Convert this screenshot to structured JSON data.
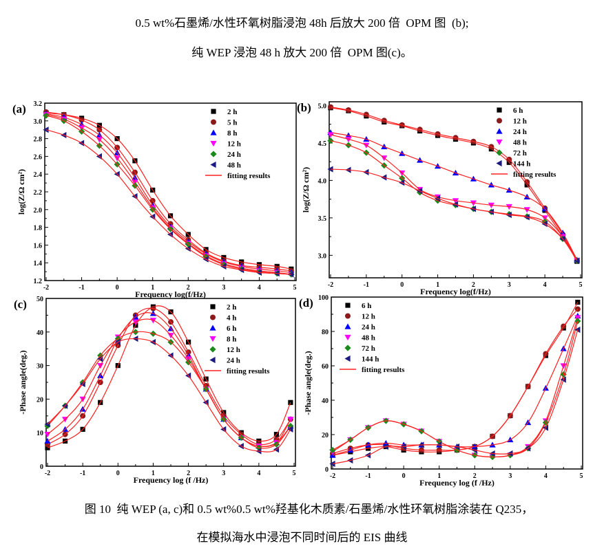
{
  "text": {
    "line1": "0.5 wt%石墨烯/水性环氧树脂浸泡 48h 后放大 200 倍  OPM 图  (b);",
    "line2": "纯 WEP 浸泡 48 h 放大 200 倍  OPM 图(c)。",
    "caption1": "图 10  纯 WEP (a, c)和 0.5 wt%0.5 wt%羟基化木质素/石墨烯/水性环氧树脂涂装在 Q235，",
    "caption2": "在模拟海水中浸泡不同时间后的 EIS 曲线"
  },
  "colors": {
    "s1": "#000000",
    "s2": "#8b1a1a",
    "s3": "#0000ff",
    "s4": "#ff00ff",
    "s5": "#1a8a1a",
    "s6": "#1a1a80",
    "fit": "#ff2020"
  },
  "chart_data": [
    {
      "panel_label": "(a)",
      "type": "scatter+line",
      "xlabel": "Frequency log(f/Hz)",
      "ylabel": "log(Z/Ω cm²)",
      "xlim": [
        -2,
        5
      ],
      "ylim": [
        1.2,
        3.2
      ],
      "xticks": [
        "-2",
        "-1",
        "0",
        "1",
        "2",
        "3",
        "4",
        "5"
      ],
      "yticks": [
        "1.2",
        "1.4",
        "1.6",
        "1.8",
        "2.0",
        "2.2",
        "2.4",
        "2.6",
        "2.8",
        "3.0",
        "3.2"
      ],
      "legend_position": "top-right",
      "fit_label": "fitting results",
      "x": [
        -2,
        -1.5,
        -1,
        -0.5,
        0,
        0.5,
        1,
        1.5,
        2,
        2.5,
        3,
        3.5,
        4,
        4.5,
        4.9
      ],
      "series": [
        {
          "name": "2 h",
          "marker": "square",
          "values": [
            3.09,
            3.07,
            3.03,
            2.95,
            2.8,
            2.55,
            2.22,
            1.93,
            1.72,
            1.55,
            1.46,
            1.41,
            1.38,
            1.36,
            1.33
          ]
        },
        {
          "name": "5 h",
          "marker": "circle",
          "values": [
            3.1,
            3.07,
            3.01,
            2.9,
            2.7,
            2.42,
            2.1,
            1.84,
            1.66,
            1.51,
            1.42,
            1.37,
            1.35,
            1.33,
            1.31
          ]
        },
        {
          "name": "8 h",
          "marker": "triangle-up",
          "values": [
            3.08,
            3.04,
            2.96,
            2.84,
            2.64,
            2.36,
            2.05,
            1.81,
            1.64,
            1.5,
            1.41,
            1.36,
            1.33,
            1.31,
            1.29
          ]
        },
        {
          "name": "12 h",
          "marker": "triangle-down",
          "values": [
            3.07,
            3.02,
            2.92,
            2.79,
            2.58,
            2.31,
            2.02,
            1.79,
            1.62,
            1.48,
            1.39,
            1.34,
            1.31,
            1.29,
            1.27
          ]
        },
        {
          "name": "24 h",
          "marker": "diamond",
          "values": [
            3.06,
            3.0,
            2.88,
            2.72,
            2.51,
            2.27,
            2.0,
            1.78,
            1.61,
            1.47,
            1.38,
            1.33,
            1.3,
            1.28,
            1.27
          ]
        },
        {
          "name": "48 h",
          "marker": "triangle-left",
          "values": [
            2.9,
            2.84,
            2.75,
            2.6,
            2.4,
            2.15,
            1.92,
            1.72,
            1.56,
            1.44,
            1.36,
            1.32,
            1.29,
            1.28,
            1.27
          ]
        }
      ]
    },
    {
      "panel_label": "(b)",
      "type": "scatter+line",
      "xlabel": "Frequency log(f/Hz)",
      "ylabel": "log(Z/Ω cm²)",
      "xlim": [
        -2,
        5
      ],
      "ylim": [
        2.7,
        5.05
      ],
      "xticks": [
        "-2",
        "-1",
        "0",
        "1",
        "2",
        "3",
        "4",
        "5"
      ],
      "yticks": [
        "3.0",
        "3.5",
        "4.0",
        "4.5",
        "5.0"
      ],
      "legend_position": "top-right",
      "fit_label": "fitting results",
      "x": [
        -2,
        -1.5,
        -1,
        -0.5,
        0,
        0.5,
        1,
        1.5,
        2,
        2.5,
        3,
        3.5,
        4,
        4.5,
        4.9
      ],
      "series": [
        {
          "name": "6 h",
          "marker": "square",
          "values": [
            4.97,
            4.93,
            4.86,
            4.78,
            4.73,
            4.66,
            4.6,
            4.55,
            4.5,
            4.42,
            4.24,
            3.94,
            3.6,
            3.25,
            2.92
          ]
        },
        {
          "name": "12 h",
          "marker": "circle",
          "values": [
            4.98,
            4.94,
            4.88,
            4.8,
            4.74,
            4.68,
            4.62,
            4.57,
            4.52,
            4.45,
            4.28,
            3.98,
            3.63,
            3.28,
            2.93
          ]
        },
        {
          "name": "24 h",
          "marker": "triangle-up",
          "values": [
            4.64,
            4.6,
            4.55,
            4.45,
            4.36,
            4.27,
            4.19,
            4.1,
            4.02,
            3.94,
            3.87,
            3.78,
            3.62,
            3.3,
            2.94
          ]
        },
        {
          "name": "48 h",
          "marker": "triangle-down",
          "values": [
            4.61,
            4.55,
            4.47,
            4.3,
            4.1,
            3.88,
            3.78,
            3.73,
            3.7,
            3.67,
            3.65,
            3.61,
            3.5,
            3.25,
            2.93
          ]
        },
        {
          "name": "72 h",
          "marker": "diamond",
          "values": [
            4.53,
            4.47,
            4.37,
            4.2,
            4.03,
            3.84,
            3.73,
            3.67,
            3.62,
            3.58,
            3.55,
            3.52,
            3.45,
            3.22,
            2.93
          ]
        },
        {
          "name": "144 h",
          "marker": "triangle-left",
          "values": [
            4.15,
            4.14,
            4.11,
            4.04,
            3.97,
            3.86,
            3.76,
            3.68,
            3.62,
            3.58,
            3.54,
            3.51,
            3.42,
            3.22,
            2.93
          ]
        }
      ]
    },
    {
      "panel_label": "(c)",
      "type": "scatter+line",
      "xlabel": "Frequency log (f /Hz)",
      "ylabel": "-Phase angle(deg.)",
      "xlim": [
        -2,
        5
      ],
      "ylim": [
        0,
        50
      ],
      "xticks": [
        "-2",
        "-1",
        "0",
        "1",
        "2",
        "3",
        "4",
        "5"
      ],
      "yticks": [
        "0",
        "10",
        "20",
        "30",
        "40",
        "50"
      ],
      "legend_position": "top-right",
      "fit_label": "fitting results",
      "x": [
        -2,
        -1.5,
        -1,
        -0.5,
        0,
        0.5,
        1,
        1.5,
        2,
        2.5,
        3,
        3.5,
        4,
        4.5,
        4.9
      ],
      "series": [
        {
          "name": "2 h",
          "marker": "square",
          "values": [
            5.5,
            7.5,
            11,
            19,
            30,
            42,
            47.5,
            46,
            37,
            26,
            16,
            10,
            7.5,
            9.5,
            19
          ]
        },
        {
          "name": "4 h",
          "marker": "circle",
          "values": [
            6.5,
            9.5,
            15,
            25,
            36,
            45,
            47,
            43,
            34,
            24,
            15,
            9.5,
            6.5,
            8,
            14
          ]
        },
        {
          "name": "6 h",
          "marker": "triangle-up",
          "values": [
            7.5,
            11,
            17,
            27,
            38,
            44.5,
            45.5,
            41,
            33,
            23,
            14,
            8.5,
            6,
            7,
            12
          ]
        },
        {
          "name": "8 h",
          "marker": "triangle-down",
          "values": [
            9.5,
            14,
            20,
            30,
            38.5,
            43,
            43.5,
            39,
            32,
            23,
            14,
            8.5,
            6,
            7,
            14
          ]
        },
        {
          "name": "12 h",
          "marker": "diamond",
          "values": [
            12,
            18,
            25,
            33,
            38,
            40,
            39.5,
            37,
            31,
            23,
            14,
            8.5,
            5.5,
            6.5,
            12
          ]
        },
        {
          "name": "24 h",
          "marker": "triangle-left",
          "values": [
            12.5,
            18,
            24.5,
            32,
            37,
            38,
            37,
            33,
            27,
            19,
            11,
            6,
            4.5,
            5,
            11
          ]
        }
      ]
    },
    {
      "panel_label": "(d)",
      "type": "scatter+line",
      "xlabel": "Frequency log (f /Hz)",
      "ylabel": "-Phase angle(deg.)",
      "xlim": [
        -2,
        5
      ],
      "ylim": [
        0,
        100
      ],
      "xticks": [
        "-2",
        "-1",
        "0",
        "1",
        "2",
        "3",
        "4",
        "5"
      ],
      "yticks": [
        "0",
        "20",
        "40",
        "60",
        "80",
        "100"
      ],
      "legend_position": "top-left",
      "fit_label": "fitting results",
      "x": [
        -2,
        -1.5,
        -1,
        -0.5,
        0,
        0.5,
        1,
        1.5,
        2,
        2.5,
        3,
        3.5,
        4,
        4.5,
        4.9
      ],
      "series": [
        {
          "name": "6 h",
          "marker": "square",
          "values": [
            8,
            10,
            12,
            13,
            11,
            10,
            10,
            11,
            13,
            19,
            31,
            48,
            66,
            82,
            97
          ]
        },
        {
          "name": "12 h",
          "marker": "circle",
          "values": [
            9,
            12,
            14,
            14,
            12,
            11,
            11,
            11,
            13,
            19,
            31,
            48,
            67,
            83,
            93
          ]
        },
        {
          "name": "24 h",
          "marker": "triangle-up",
          "values": [
            8,
            11,
            14,
            15,
            14,
            14,
            14,
            13,
            13,
            14,
            17,
            27,
            47,
            70,
            89
          ]
        },
        {
          "name": "48 h",
          "marker": "triangle-down",
          "values": [
            10,
            17,
            24,
            28,
            26,
            22,
            16,
            11,
            8,
            7,
            8,
            13,
            28,
            60,
            88
          ]
        },
        {
          "name": "72 h",
          "marker": "diamond",
          "values": [
            11,
            17,
            24,
            28,
            26,
            22,
            16,
            11,
            8,
            7,
            8,
            12,
            27,
            55,
            86
          ]
        },
        {
          "name": "144 h",
          "marker": "triangle-left",
          "values": [
            3,
            5,
            8,
            13,
            13,
            14,
            14,
            13,
            11,
            9,
            9,
            12,
            24,
            52,
            81
          ]
        }
      ]
    }
  ]
}
